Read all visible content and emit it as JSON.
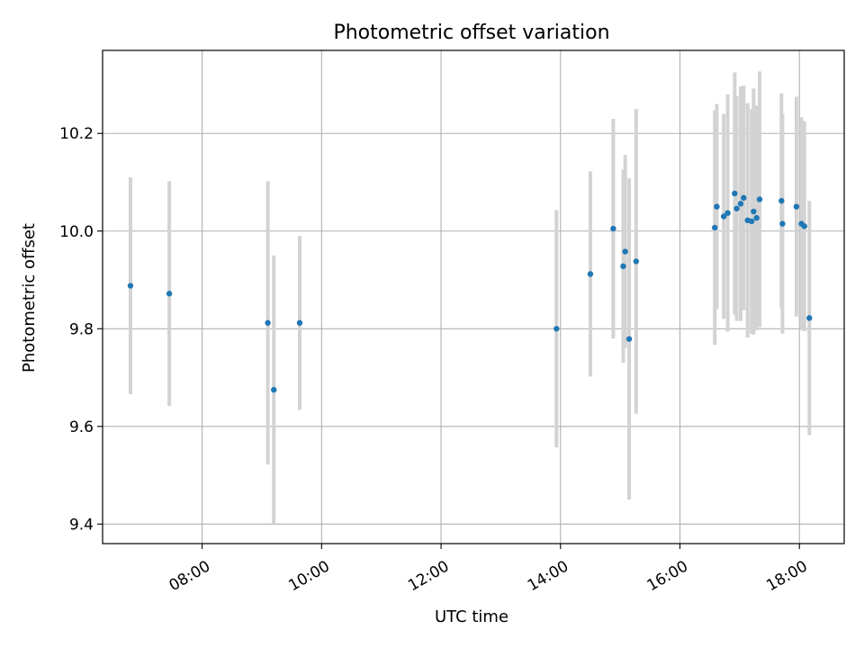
{
  "chart_data": {
    "type": "scatter",
    "title": "Photometric offset variation",
    "xlabel": "UTC time",
    "ylabel": "Photometric offset",
    "x_axis": {
      "type": "time",
      "range": [
        "06:20",
        "18:45"
      ],
      "ticks": [
        "08:00",
        "10:00",
        "12:00",
        "14:00",
        "16:00",
        "18:00"
      ]
    },
    "y_axis": {
      "range": [
        9.36,
        10.37
      ],
      "ticks": [
        "9.4",
        "9.6",
        "9.8",
        "10.0",
        "10.2"
      ]
    },
    "grid": true,
    "colors": {
      "point": "#1f77b4",
      "errorbar": "#d3d3d3",
      "grid": "#b0b0b0"
    },
    "series": [
      {
        "points": [
          {
            "time": "06:48",
            "y": 9.888,
            "err": 0.222
          },
          {
            "time": "07:27",
            "y": 9.872,
            "err": 0.23
          },
          {
            "time": "09:06",
            "y": 9.812,
            "err": 0.29
          },
          {
            "time": "09:12",
            "y": 9.675,
            "err": 0.275
          },
          {
            "time": "09:38",
            "y": 9.812,
            "err": 0.178
          },
          {
            "time": "13:56",
            "y": 9.8,
            "err": 0.243
          },
          {
            "time": "14:30",
            "y": 9.912,
            "err": 0.21
          },
          {
            "time": "14:53",
            "y": 10.005,
            "err": 0.225
          },
          {
            "time": "15:03",
            "y": 9.928,
            "err": 0.198
          },
          {
            "time": "15:05",
            "y": 9.958,
            "err": 0.198
          },
          {
            "time": "15:09",
            "y": 9.779,
            "err": 0.329
          },
          {
            "time": "15:16",
            "y": 9.938,
            "err": 0.312
          },
          {
            "time": "16:35",
            "y": 10.007,
            "err": 0.24
          },
          {
            "time": "16:37",
            "y": 10.05,
            "err": 0.21
          },
          {
            "time": "16:44",
            "y": 10.03,
            "err": 0.21
          },
          {
            "time": "16:48",
            "y": 10.037,
            "err": 0.243
          },
          {
            "time": "16:55",
            "y": 10.077,
            "err": 0.248
          },
          {
            "time": "16:57",
            "y": 10.046,
            "err": 0.23
          },
          {
            "time": "17:01",
            "y": 10.056,
            "err": 0.24
          },
          {
            "time": "17:04",
            "y": 10.068,
            "err": 0.23
          },
          {
            "time": "17:08",
            "y": 10.022,
            "err": 0.24
          },
          {
            "time": "17:12",
            "y": 10.02,
            "err": 0.23
          },
          {
            "time": "17:14",
            "y": 10.04,
            "err": 0.252
          },
          {
            "time": "17:17",
            "y": 10.027,
            "err": 0.23
          },
          {
            "time": "17:20",
            "y": 10.065,
            "err": 0.262
          },
          {
            "time": "17:42",
            "y": 10.062,
            "err": 0.22
          },
          {
            "time": "17:43",
            "y": 10.015,
            "err": 0.225
          },
          {
            "time": "17:57",
            "y": 10.05,
            "err": 0.225
          },
          {
            "time": "18:02",
            "y": 10.015,
            "err": 0.218
          },
          {
            "time": "18:05",
            "y": 10.01,
            "err": 0.215
          },
          {
            "time": "18:10",
            "y": 9.822,
            "err": 0.24
          }
        ]
      }
    ]
  }
}
